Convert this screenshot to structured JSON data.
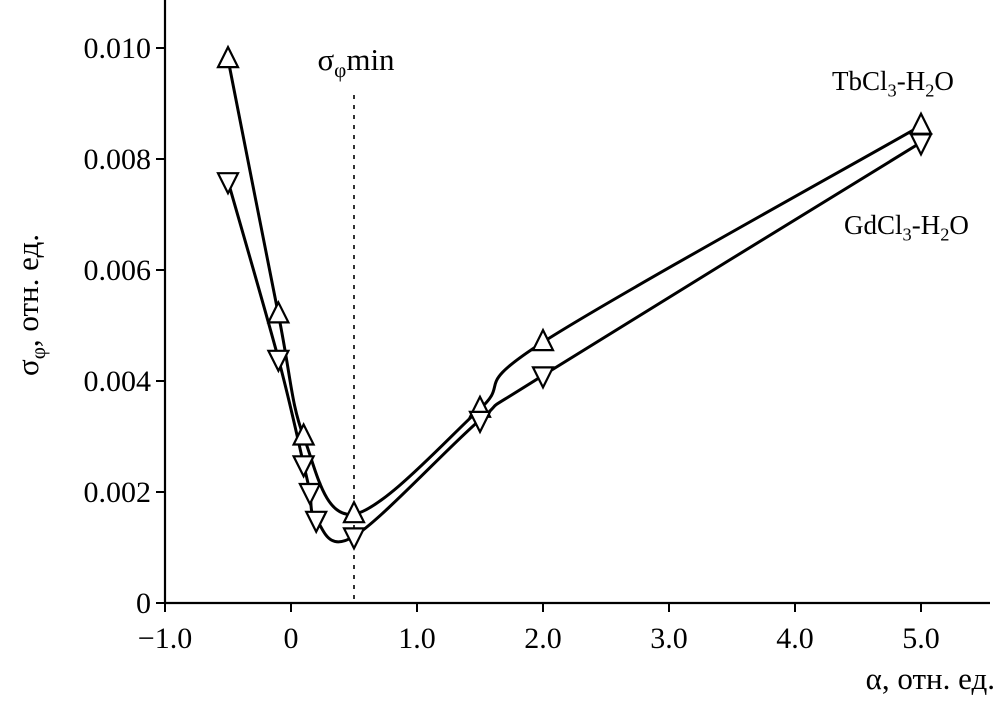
{
  "figure": {
    "background": "#ffffff",
    "ink": "#000000"
  },
  "labels": {
    "xlabel": "α, отн. ед.",
    "ylabel_parts": [
      "σ",
      "φ",
      ", отн. ед."
    ],
    "annotation_parts": [
      "σ",
      "φ",
      "min"
    ]
  },
  "chart_data": {
    "type": "line",
    "title": "",
    "xlabel": "α, отн. ед.",
    "ylabel": "σφ, отн. ед.",
    "xlim": [
      -1.2,
      5.5
    ],
    "ylim": [
      0,
      0.0108
    ],
    "grid": false,
    "legend_position": "inline-right",
    "x_ticks": [
      {
        "v": -1.0,
        "label": "−1.0"
      },
      {
        "v": 0.0,
        "label": "0"
      },
      {
        "v": 1.0,
        "label": "1.0"
      },
      {
        "v": 2.0,
        "label": "2.0"
      },
      {
        "v": 3.0,
        "label": "3.0"
      },
      {
        "v": 4.0,
        "label": "4.0"
      },
      {
        "v": 5.0,
        "label": "5.0"
      }
    ],
    "y_ticks": [
      {
        "v": 0.0,
        "label": "0"
      },
      {
        "v": 0.002,
        "label": "0.002"
      },
      {
        "v": 0.004,
        "label": "0.004"
      },
      {
        "v": 0.006,
        "label": "0.006"
      },
      {
        "v": 0.008,
        "label": "0.008"
      },
      {
        "v": 0.01,
        "label": "0.010"
      }
    ],
    "vline": {
      "x": 0.5,
      "style": "dashed",
      "label": "σφmin"
    },
    "series": [
      {
        "name": "TbCl3-H2O",
        "label_parts": [
          "TbCl",
          "3",
          "-H",
          "2",
          "O"
        ],
        "marker": "triangle-up",
        "line_color": "#000000",
        "marker_fill": "#ffffff",
        "points": [
          [
            -0.5,
            0.0098
          ],
          [
            -0.1,
            0.0052
          ],
          [
            0.1,
            0.003
          ],
          [
            0.5,
            0.0016
          ],
          [
            1.5,
            0.0035
          ],
          [
            2.0,
            0.0047
          ],
          [
            5.0,
            0.0086
          ]
        ]
      },
      {
        "name": "GdCl3-H2O",
        "label_parts": [
          "GdCl",
          "3",
          "-H",
          "2",
          "O"
        ],
        "marker": "triangle-down",
        "line_color": "#000000",
        "marker_fill": "#ffffff",
        "points": [
          [
            -0.5,
            0.0076
          ],
          [
            -0.1,
            0.0044
          ],
          [
            0.1,
            0.0025
          ],
          [
            0.15,
            0.002
          ],
          [
            0.2,
            0.0015
          ],
          [
            0.5,
            0.0012
          ],
          [
            1.5,
            0.0033
          ],
          [
            2.0,
            0.0041
          ],
          [
            5.0,
            0.0083
          ]
        ]
      }
    ]
  }
}
